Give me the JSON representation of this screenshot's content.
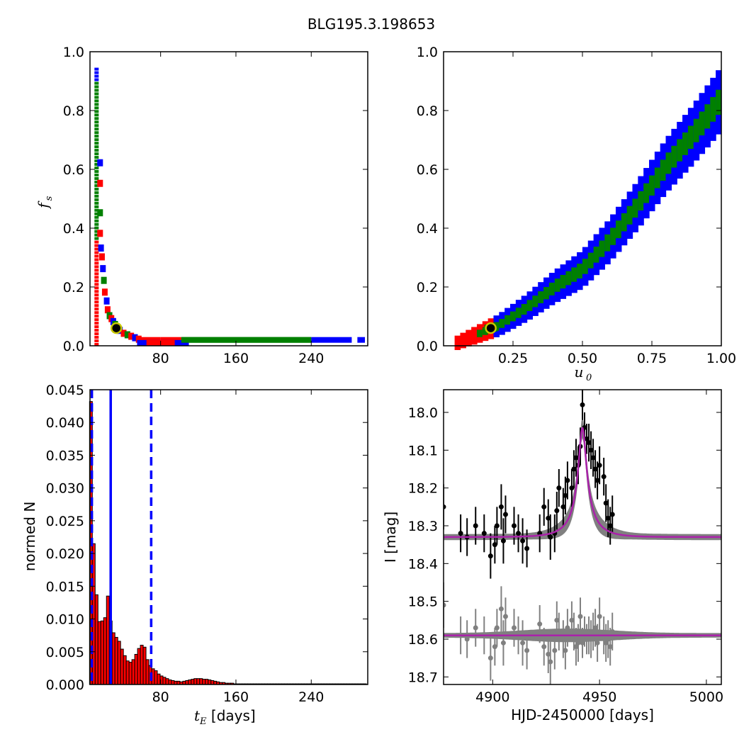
{
  "title": "BLG195.3.198653",
  "chart_data": [
    {
      "type": "heatmap",
      "panel": "top-left",
      "xlabel": "",
      "ylabel": "f_s",
      "ylabel_display": "f",
      "ylabel_sub": "s",
      "xlim": [
        5,
        300
      ],
      "ylim": [
        0,
        1
      ],
      "xticks": [
        "80",
        "160",
        "240"
      ],
      "yticks": [
        "0.0",
        "0.2",
        "0.4",
        "0.6",
        "0.8",
        "1.0"
      ],
      "colors": {
        "outer": "#0000ff",
        "middle": "#ff0000",
        "inner": "#008000",
        "best_fit": "#000000",
        "marker_ring": "#c8c800"
      },
      "best_fit": {
        "x": 33,
        "y": 0.06
      },
      "cells": [
        {
          "x": 12,
          "y0": 0.0,
          "y1": 0.94,
          "level": "outer"
        },
        {
          "x": 12,
          "y0": 0.3,
          "y1": 0.88,
          "level": "inner"
        },
        {
          "x": 16,
          "y0": 0.2,
          "y1": 0.6,
          "level": "outer"
        },
        {
          "x": 16,
          "y0": 0.25,
          "y1": 0.34,
          "level": "middle"
        },
        {
          "x": 20,
          "y0": 0.1,
          "y1": 0.23,
          "level": "outer"
        },
        {
          "x": 24,
          "y0": 0.06,
          "y1": 0.12,
          "level": "middle"
        },
        {
          "x": 30,
          "y0": 0.04,
          "y1": 0.08,
          "level": "inner"
        },
        {
          "x": 60,
          "y0": 0.0,
          "y1": 0.03,
          "level": "middle"
        },
        {
          "x": 100,
          "y0": 0.0,
          "y1": 0.03,
          "level": "outer"
        },
        {
          "x": 170,
          "y0": 0.0,
          "y1": 0.03,
          "level": "inner"
        },
        {
          "x": 260,
          "y0": 0.0,
          "y1": 0.03,
          "level": "outer"
        }
      ]
    },
    {
      "type": "heatmap",
      "panel": "top-right",
      "xlabel": "u_0",
      "xlabel_display": "u",
      "xlabel_sub": "0",
      "ylabel": "",
      "xlim": [
        0,
        1
      ],
      "ylim": [
        0,
        1
      ],
      "xticks": [
        "0.25",
        "0.50",
        "0.75",
        "1.00"
      ],
      "yticks": [
        "0.0",
        "0.2",
        "0.4",
        "0.6",
        "0.8",
        "1.0"
      ],
      "colors": {
        "outer": "#0000ff",
        "middle": "#ff0000",
        "inner": "#008000",
        "best_fit": "#000000",
        "marker_ring": "#c8c800"
      },
      "best_fit": {
        "x": 0.17,
        "y": 0.06
      },
      "band": [
        {
          "x": 0.05,
          "y": 0.01
        },
        {
          "x": 0.2,
          "y": 0.07
        },
        {
          "x": 0.3,
          "y": 0.13
        },
        {
          "x": 0.4,
          "y": 0.2
        },
        {
          "x": 0.5,
          "y": 0.26
        },
        {
          "x": 0.6,
          "y": 0.36
        },
        {
          "x": 0.7,
          "y": 0.48
        },
        {
          "x": 0.8,
          "y": 0.61
        },
        {
          "x": 0.9,
          "y": 0.72
        },
        {
          "x": 1.0,
          "y": 0.84
        }
      ]
    },
    {
      "type": "bar",
      "panel": "bottom-left",
      "xlabel": "t_E [days]",
      "xlabel_display_main": "t",
      "xlabel_display_sub": "E",
      "xlabel_display_rest": " [days]",
      "ylabel": "normed N",
      "xlim": [
        5,
        300
      ],
      "ylim": [
        0,
        0.045
      ],
      "xticks": [
        "80",
        "160",
        "240"
      ],
      "yticks": [
        "0.000",
        "0.005",
        "0.010",
        "0.015",
        "0.020",
        "0.025",
        "0.030",
        "0.035",
        "0.040",
        "0.045"
      ],
      "bar_color": "#ff0000",
      "edge_color": "#000000",
      "bin_width": 3,
      "bins": [
        6,
        9,
        12,
        15,
        18,
        21,
        24,
        27,
        30,
        33,
        36,
        39,
        42,
        45,
        48,
        51,
        54,
        57,
        60,
        63,
        66,
        69,
        72,
        75,
        78,
        81,
        84,
        87,
        90,
        93,
        96,
        99,
        102,
        105,
        108,
        111,
        114,
        117,
        120,
        123,
        126,
        129,
        132,
        135,
        138,
        141,
        144,
        147,
        150,
        153,
        156,
        159,
        162,
        165,
        168,
        171,
        174,
        177,
        180,
        183,
        186,
        189,
        192,
        195,
        198,
        201,
        204,
        207,
        210,
        213,
        216,
        219,
        222,
        225,
        228,
        231,
        234,
        237,
        240,
        243,
        246,
        249,
        252,
        255,
        258,
        261,
        264,
        267,
        270,
        273,
        276,
        279,
        282,
        285,
        288,
        291,
        294,
        297
      ],
      "values": [
        0.0432,
        0.0215,
        0.0137,
        0.0096,
        0.0097,
        0.0102,
        0.0135,
        0.0097,
        0.0079,
        0.0072,
        0.0066,
        0.0054,
        0.0044,
        0.0036,
        0.0034,
        0.0038,
        0.0046,
        0.0055,
        0.006,
        0.0057,
        0.0038,
        0.0029,
        0.0024,
        0.0021,
        0.0016,
        0.0013,
        0.0011,
        0.0009,
        0.0007,
        0.0006,
        0.0005,
        0.0005,
        0.0004,
        0.0005,
        0.0006,
        0.0007,
        0.0008,
        0.0009,
        0.0009,
        0.0009,
        0.0008,
        0.0008,
        0.0007,
        0.0006,
        0.0005,
        0.0004,
        0.0003,
        0.0003,
        0.0002,
        0.0002,
        0.0002,
        0.0001,
        0.0001,
        0.0001,
        0.0001,
        0.0001,
        0.0001,
        0.0001,
        0.0001,
        0.0001,
        0.0001,
        0.0001,
        0.0001,
        0.0001,
        0.0001,
        0.0001,
        0.0001,
        0.0001,
        0.0001,
        0.0001,
        0.0001,
        0.0001,
        0.0001,
        0.0001,
        0.0001,
        0.0001,
        0.0001,
        0.0001,
        0.0001,
        0.0001,
        0.0001,
        0.0001,
        0.0001,
        0.0001,
        0.0001,
        0.0001,
        0.0001,
        0.0001,
        0.0001,
        0.0001,
        0.0001,
        0.0001,
        0.0001,
        0.0001,
        0.0001,
        0.0001,
        0.0001,
        0.0001
      ],
      "vlines": [
        {
          "x": 7,
          "style": "dashed",
          "color": "#0000ff"
        },
        {
          "x": 27,
          "style": "solid",
          "color": "#0000ff"
        },
        {
          "x": 70,
          "style": "dashed",
          "color": "#0000ff"
        }
      ]
    },
    {
      "type": "scatter",
      "panel": "bottom-right",
      "xlabel": "HJD-2450000 [days]",
      "ylabel": "I [mag]",
      "xlim": [
        4877,
        5007
      ],
      "ylim": [
        18.72,
        17.94
      ],
      "y_inverted": true,
      "xticks": [
        "4900",
        "4950",
        "5000"
      ],
      "yticks": [
        "18.0",
        "18.1",
        "18.2",
        "18.3",
        "18.4",
        "18.5",
        "18.6",
        "18.7"
      ],
      "model": {
        "t0": 4942,
        "u0": 0.17,
        "tE": 11,
        "baseline": 18.33,
        "peak": 18.04,
        "color": "#aa22aa",
        "band_color": "#808080"
      },
      "residual_baseline": 18.59,
      "series": [
        {
          "color": "#000000",
          "x": [
            4877,
            4885,
            4888,
            4892,
            4896,
            4899,
            4901,
            4902,
            4904,
            4905,
            4906,
            4910,
            4912,
            4914,
            4916,
            4922,
            4924,
            4926,
            4927,
            4929,
            4930,
            4931,
            4933,
            4934,
            4935,
            4937,
            4938,
            4939,
            4940,
            4941,
            4942,
            4943,
            4944,
            4945,
            4946,
            4947,
            4948,
            4949,
            4950,
            4952,
            4953,
            4954,
            4955,
            4956
          ],
          "y": [
            18.25,
            18.32,
            18.33,
            18.3,
            18.32,
            18.38,
            18.35,
            18.3,
            18.25,
            18.34,
            18.27,
            18.3,
            18.32,
            18.34,
            18.36,
            18.32,
            18.25,
            18.28,
            18.33,
            18.32,
            18.26,
            18.2,
            18.25,
            18.22,
            18.18,
            18.2,
            18.15,
            18.12,
            18.14,
            18.09,
            17.98,
            18.04,
            18.07,
            18.08,
            18.1,
            18.12,
            18.15,
            18.18,
            18.14,
            18.17,
            18.24,
            18.28,
            18.3,
            18.27
          ],
          "err": [
            0.06,
            0.05,
            0.05,
            0.05,
            0.05,
            0.06,
            0.05,
            0.05,
            0.06,
            0.06,
            0.05,
            0.05,
            0.05,
            0.06,
            0.05,
            0.05,
            0.05,
            0.05,
            0.06,
            0.05,
            0.05,
            0.05,
            0.05,
            0.05,
            0.05,
            0.05,
            0.05,
            0.05,
            0.05,
            0.05,
            0.04,
            0.04,
            0.04,
            0.05,
            0.05,
            0.05,
            0.05,
            0.05,
            0.05,
            0.05,
            0.05,
            0.05,
            0.05,
            0.05
          ]
        },
        {
          "color": "#808080",
          "x": [
            4877,
            4885,
            4888,
            4892,
            4896,
            4899,
            4901,
            4902,
            4904,
            4905,
            4906,
            4910,
            4912,
            4914,
            4916,
            4922,
            4924,
            4926,
            4927,
            4929,
            4930,
            4931,
            4933,
            4934,
            4935,
            4937,
            4938,
            4939,
            4940,
            4941,
            4942,
            4943,
            4944,
            4945,
            4946,
            4947,
            4948,
            4949,
            4950,
            4952,
            4953,
            4954,
            4955,
            4956
          ],
          "y": [
            18.51,
            18.59,
            18.6,
            18.57,
            18.59,
            18.65,
            18.62,
            18.57,
            18.52,
            18.61,
            18.54,
            18.57,
            18.59,
            18.61,
            18.63,
            18.56,
            18.62,
            18.64,
            18.66,
            18.63,
            18.55,
            18.58,
            18.6,
            18.63,
            18.57,
            18.55,
            18.58,
            18.62,
            18.61,
            18.54,
            18.61,
            18.58,
            18.6,
            18.59,
            18.6,
            18.58,
            18.57,
            18.61,
            18.54,
            18.59,
            18.61,
            18.6,
            18.62,
            18.58
          ],
          "err": [
            0.06,
            0.05,
            0.05,
            0.05,
            0.05,
            0.06,
            0.05,
            0.05,
            0.06,
            0.06,
            0.05,
            0.05,
            0.05,
            0.06,
            0.05,
            0.05,
            0.05,
            0.05,
            0.06,
            0.05,
            0.05,
            0.05,
            0.05,
            0.05,
            0.05,
            0.05,
            0.05,
            0.05,
            0.05,
            0.05,
            0.04,
            0.04,
            0.04,
            0.05,
            0.05,
            0.05,
            0.05,
            0.05,
            0.05,
            0.05,
            0.05,
            0.05,
            0.05,
            0.05
          ]
        }
      ]
    }
  ]
}
